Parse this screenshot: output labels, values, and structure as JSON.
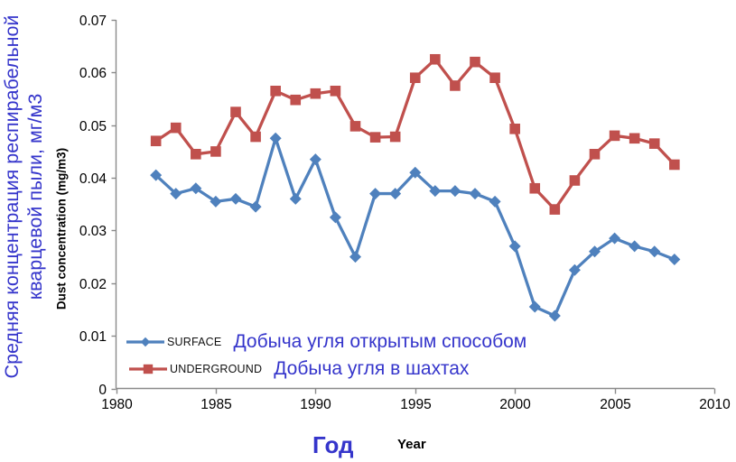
{
  "figure": {
    "y_axis_title_ru_line1": "Средняя концентрация респирабельной",
    "y_axis_title_ru_line2": "кварцевой пыли, мг/м3",
    "y_axis_title_en": "Dust concentration (mg/m3)",
    "x_axis_title_ru": "Год",
    "x_axis_title_en": "Year"
  },
  "legend": {
    "surface_label": "SURFACE",
    "surface_label_ru": "Добыча угля открытым способом",
    "underground_label": "UNDERGROUND",
    "underground_label_ru": "Добыча угля в шахтах"
  },
  "colors": {
    "surface_series": "#4F81BD",
    "underground_series": "#C0504D",
    "blue_text": "#3535CB",
    "axis_line": "#8a8a8a",
    "tick_text": "#000000"
  },
  "chart_data": {
    "type": "line",
    "x": [
      1982,
      1983,
      1984,
      1985,
      1986,
      1987,
      1988,
      1989,
      1990,
      1991,
      1992,
      1993,
      1994,
      1995,
      1996,
      1997,
      1998,
      1999,
      2000,
      2001,
      2002,
      2003,
      2004,
      2005,
      2006,
      2007,
      2008
    ],
    "series": [
      {
        "name": "SURFACE",
        "marker": "diamond",
        "color": "#4F81BD",
        "values": [
          0.0405,
          0.037,
          0.038,
          0.0355,
          0.036,
          0.0345,
          0.0475,
          0.036,
          0.0435,
          0.0325,
          0.025,
          0.037,
          0.037,
          0.041,
          0.0375,
          0.0375,
          0.037,
          0.0355,
          0.027,
          0.0155,
          0.0138,
          0.0225,
          0.026,
          0.0285,
          0.027,
          0.026,
          0.0245
        ]
      },
      {
        "name": "UNDERGROUND",
        "marker": "square",
        "color": "#C0504D",
        "values": [
          0.047,
          0.0495,
          0.0445,
          0.045,
          0.0525,
          0.0478,
          0.0565,
          0.0548,
          0.056,
          0.0565,
          0.0498,
          0.0477,
          0.0478,
          0.059,
          0.0625,
          0.0575,
          0.062,
          0.059,
          0.0493,
          0.038,
          0.034,
          0.0395,
          0.0445,
          0.048,
          0.0475,
          0.0465,
          0.0425
        ]
      }
    ],
    "title": "",
    "xlabel": "Год / Year",
    "ylabel": "Dust concentration (mg/m3)",
    "xlim": [
      1980,
      2010
    ],
    "ylim": [
      0,
      0.07
    ],
    "x_ticks": [
      1980,
      1985,
      1990,
      1995,
      2000,
      2005,
      2010
    ],
    "y_ticks": [
      0,
      0.01,
      0.02,
      0.03,
      0.04,
      0.05,
      0.06,
      0.07
    ],
    "y_tick_labels": [
      "0",
      "0.01",
      "0.02",
      "0.03",
      "0.04",
      "0.05",
      "0.06",
      "0.07"
    ],
    "grid": false,
    "legend_position": "inside-bottom-left"
  }
}
